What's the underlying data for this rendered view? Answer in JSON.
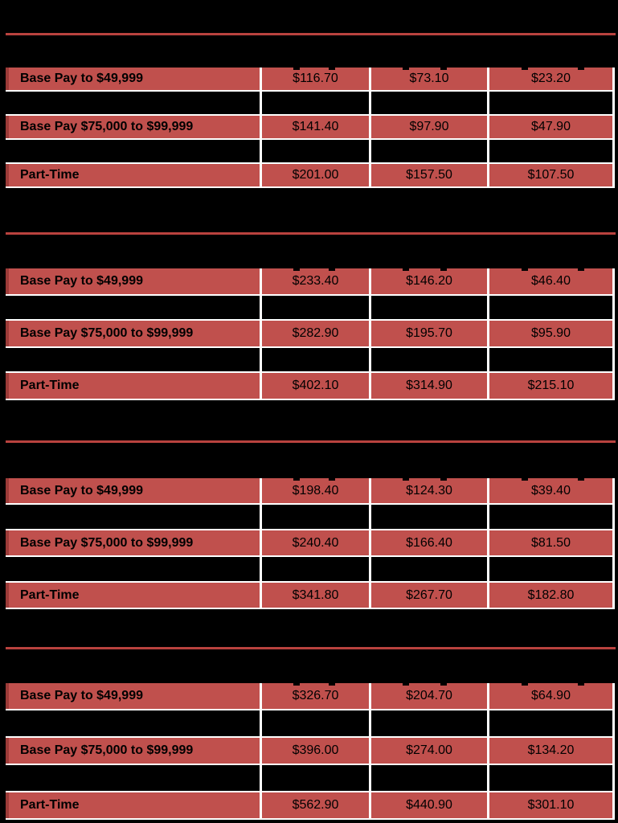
{
  "colors": {
    "page_background": "#000000",
    "row_fill_red": "#c0504d",
    "row_left_edge_red": "#9c3b38",
    "section_rule_red": "#b9423e",
    "gridline_white": "#ffffff",
    "text_black": "#000000"
  },
  "sections": [
    {
      "table": {
        "rows": [
          {
            "label": "Base Pay to $49,999",
            "values": [
              "$116.70",
              "$73.10",
              "$23.20"
            ]
          },
          {
            "label": "Base Pay $75,000 to $99,999",
            "values": [
              "$141.40",
              "$97.90",
              "$47.90"
            ]
          },
          {
            "label": "Part-Time",
            "values": [
              "$201.00",
              "$157.50",
              "$107.50"
            ]
          }
        ]
      }
    },
    {
      "table": {
        "rows": [
          {
            "label": "Base Pay to $49,999",
            "values": [
              "$233.40",
              "$146.20",
              "$46.40"
            ]
          },
          {
            "label": "Base Pay $75,000 to $99,999",
            "values": [
              "$282.90",
              "$195.70",
              "$95.90"
            ]
          },
          {
            "label": "Part-Time",
            "values": [
              "$402.10",
              "$314.90",
              "$215.10"
            ]
          }
        ]
      }
    },
    {
      "table": {
        "rows": [
          {
            "label": "Base Pay to $49,999",
            "values": [
              "$198.40",
              "$124.30",
              "$39.40"
            ]
          },
          {
            "label": "Base Pay $75,000 to $99,999",
            "values": [
              "$240.40",
              "$166.40",
              "$81.50"
            ]
          },
          {
            "label": "Part-Time",
            "values": [
              "$341.80",
              "$267.70",
              "$182.80"
            ]
          }
        ]
      }
    },
    {
      "table": {
        "rows": [
          {
            "label": "Base Pay to $49,999",
            "values": [
              "$326.70",
              "$204.70",
              "$64.90"
            ]
          },
          {
            "label": "Base Pay $75,000 to $99,999",
            "values": [
              "$396.00",
              "$274.00",
              "$134.20"
            ]
          },
          {
            "label": "Part-Time",
            "values": [
              "$562.90",
              "$440.90",
              "$301.10"
            ]
          }
        ]
      }
    }
  ]
}
